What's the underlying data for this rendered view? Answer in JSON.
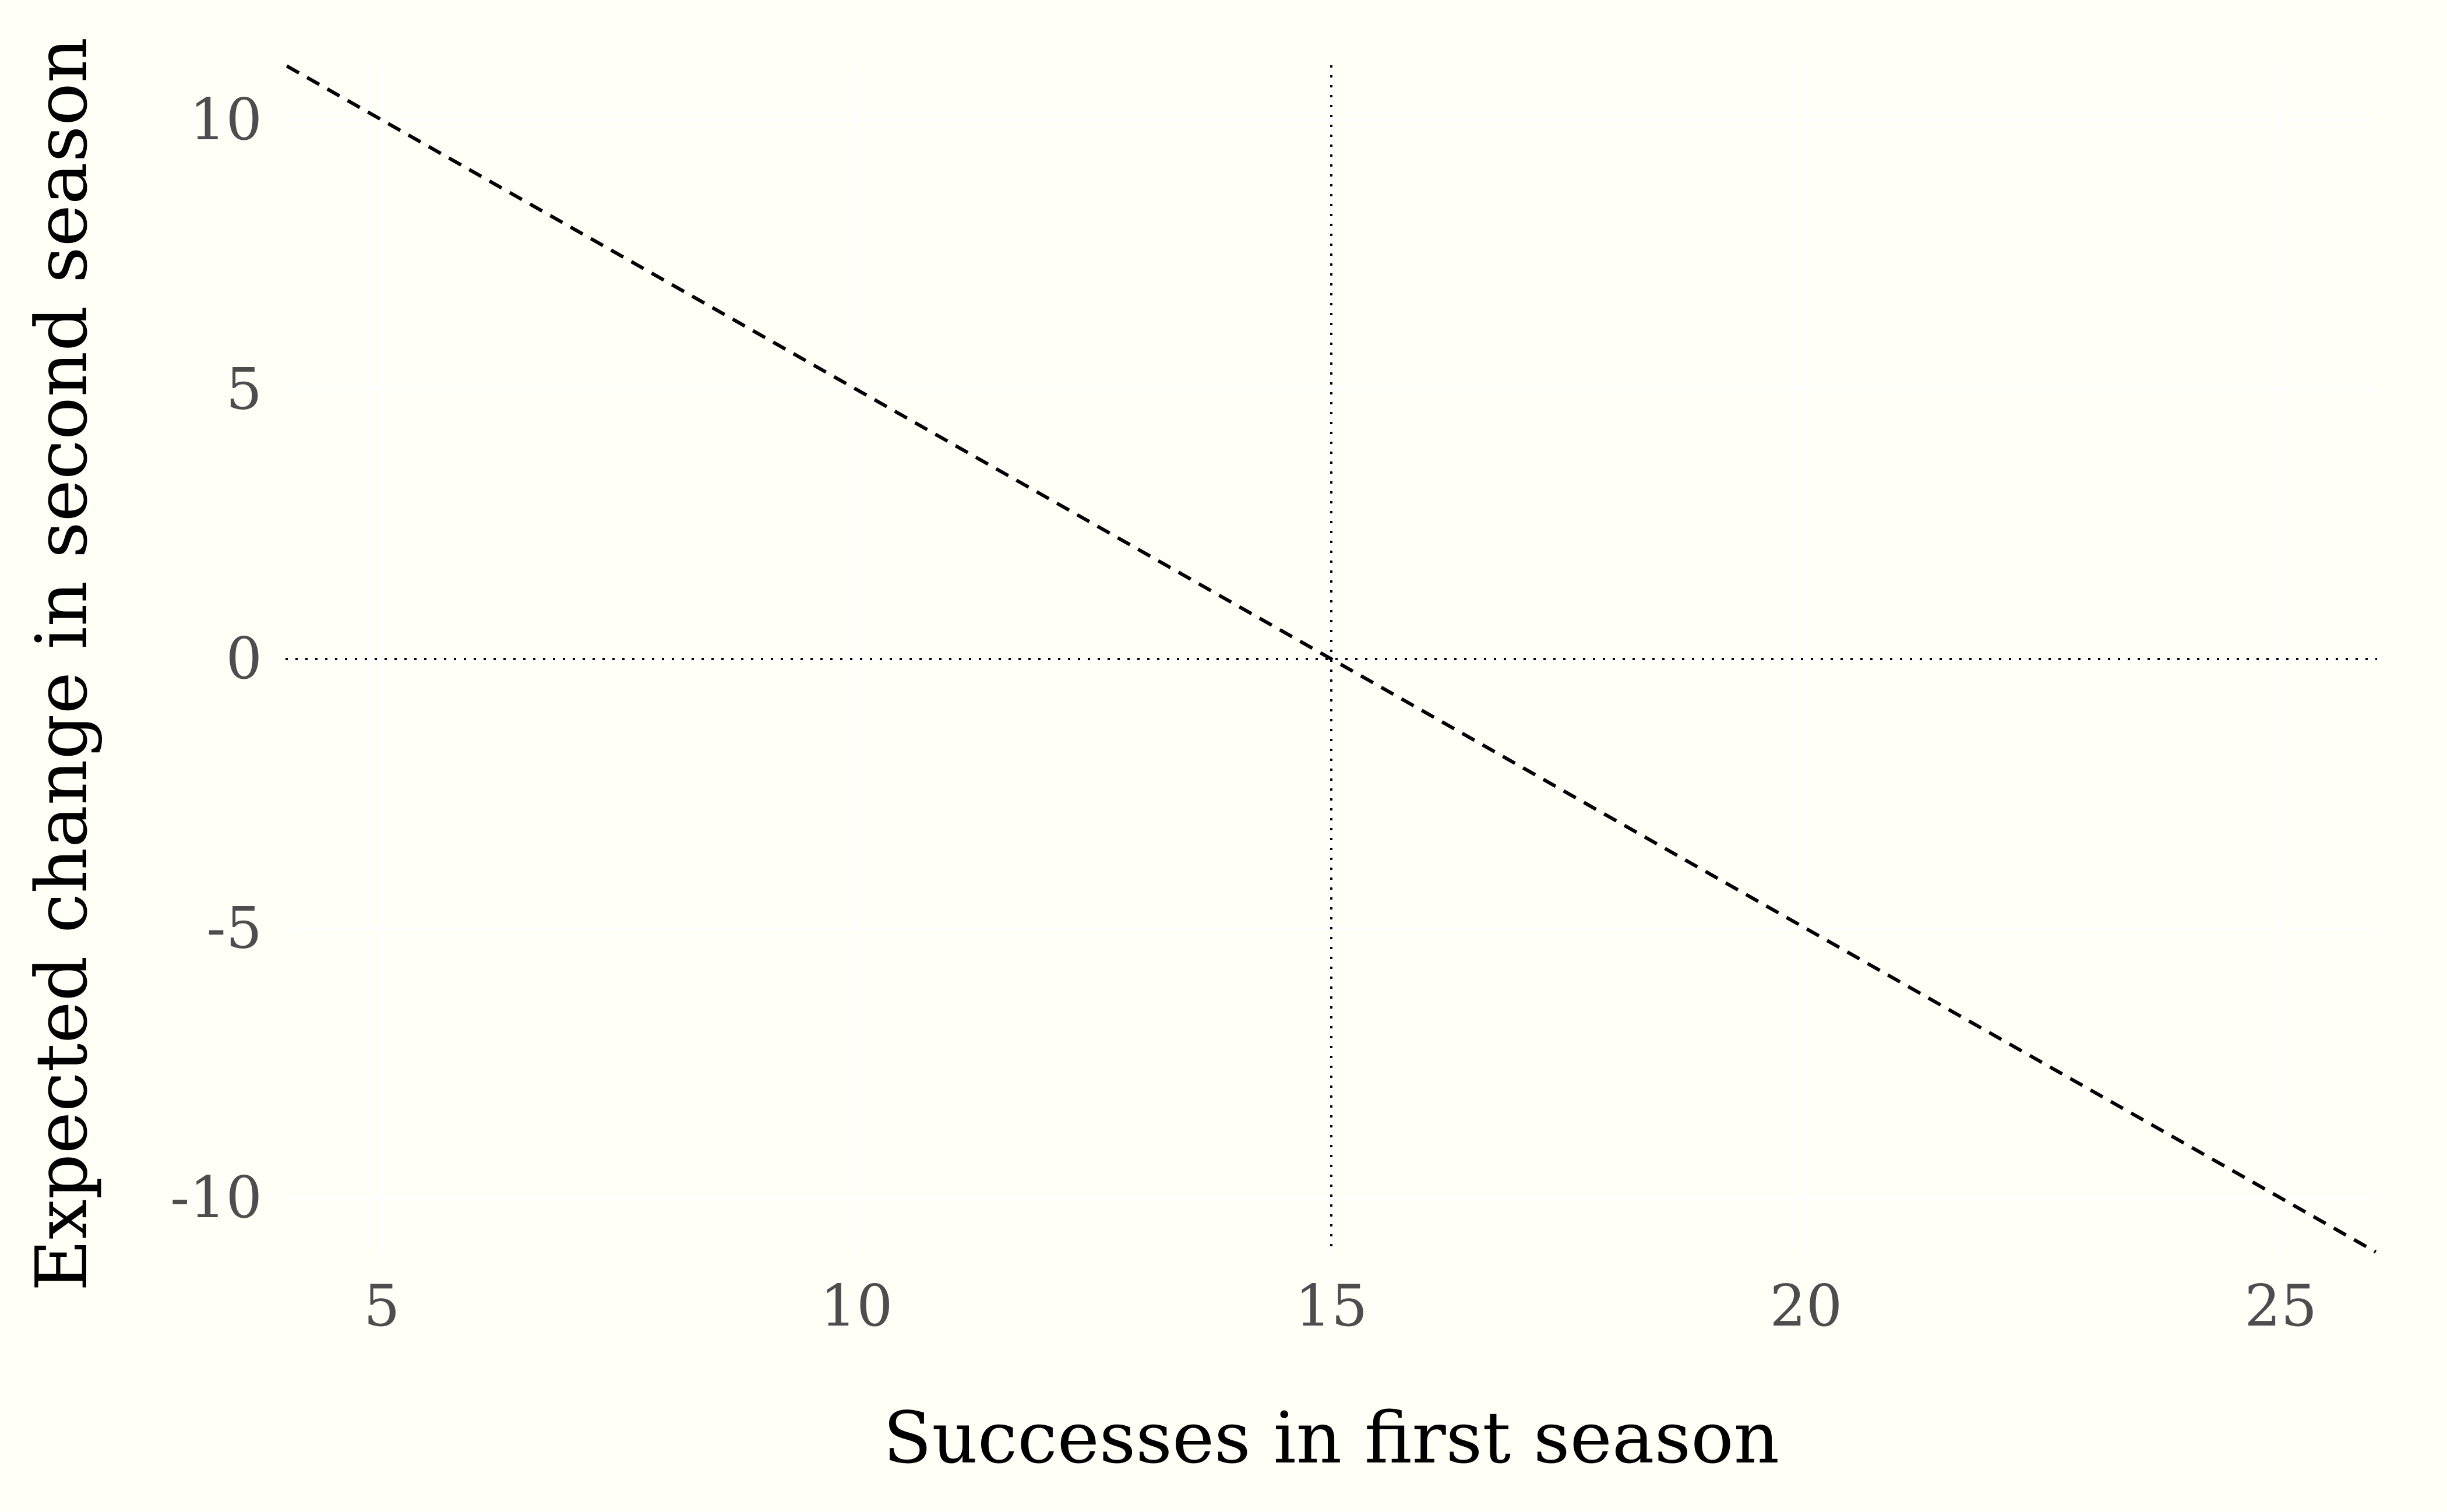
{
  "chart_data": {
    "type": "line",
    "xlabel": "Successes in first season",
    "ylabel": "Expected change in second season",
    "xlim": [
      3.986,
      26.014
    ],
    "ylim": [
      -11.014,
      11.014
    ],
    "x_ticks": [
      5,
      10,
      15,
      20,
      25
    ],
    "y_ticks": [
      10,
      5,
      0,
      -5,
      -10
    ],
    "x_tick_labels": [
      "5",
      "10",
      "15",
      "20",
      "25"
    ],
    "y_tick_labels": [
      "10",
      "5",
      "0",
      "-5",
      "-10"
    ],
    "grid": true,
    "series": [
      {
        "x": [
          4,
          26
        ],
        "y": [
          11,
          -11
        ],
        "line_style": "dashed",
        "color": "#000000"
      }
    ],
    "reference_lines": [
      {
        "orientation": "vertical",
        "value": 15,
        "line_style": "dotted",
        "color": "#000000"
      },
      {
        "orientation": "horizontal",
        "value": 0,
        "line_style": "dotted",
        "color": "#000000"
      }
    ],
    "colors": {
      "background": "#fffff8",
      "grid": "#ffffff",
      "tick_text": "#4d4d4d",
      "title_text": "#000000"
    }
  }
}
